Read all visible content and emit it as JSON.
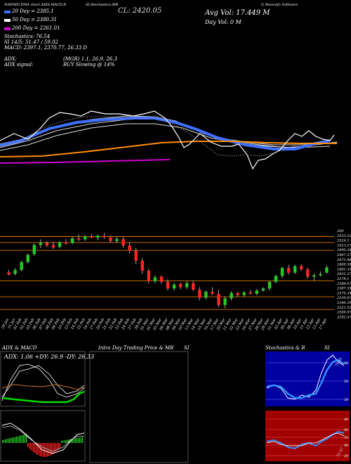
{
  "header": {
    "line1_left": "NSEIND EMA chart AXIS,MACD,R",
    "line1_mid": "SI,Stochastics,MR",
    "close_label": "CL: 2420.05",
    "line1_right": "I) Muncafo Software",
    "vol_label": "Avg Vol: 17.449 M",
    "day_vol_label": "Day Vol: 0   M",
    "ema20": "20  Day = 2385.1",
    "ema50": "50  Day = 2380.31",
    "ema200": "200  Day = 2261.01",
    "stochastics": "Stochastics: 76.54",
    "rsi": "SI 14/5: 51.47 / 59.02",
    "macd": "MACD: 2397.1, 2370.77, 26.33 D",
    "adx": "ADX:",
    "adx_values": "(MGR) 1.1, 26.9, 26.3",
    "adx_signal_label": "ADX  signal:",
    "adx_signal": "BUY Slowing @ 14%"
  },
  "colors": {
    "ema20": "#ffffff",
    "ema50": "#3f6fff",
    "ema100": "#d8d8d8",
    "ema200": "#ff8c00",
    "ema_magenta": "#d000d0",
    "up": "#22cc22",
    "down": "#ff2222",
    "orange_line": "#ff8c00",
    "blue_panel": "#0000a0",
    "red_panel": "#a00000",
    "green_line": "#00dd00"
  },
  "price_scale": [
    "200",
    "2533.33",
    "2524.3",
    "2513.27",
    "2495.24",
    "2487.27",
    "2471.46",
    "2469.38",
    "2461.33",
    "2431.27",
    "2379.1",
    "2399.67",
    "2387.39",
    "2375.34",
    "2330.87",
    "2346.29",
    "2321.53",
    "2306.97",
    "2292.57"
  ],
  "dates": [
    "29 Jan",
    "31 Jan",
    "01 Feb",
    "02 Feb",
    "03 Feb",
    "06 Feb",
    "07 Feb",
    "08 Feb",
    "09 Feb",
    "10 Feb",
    "13 Feb",
    "14 Feb",
    "15 Feb",
    "16 Feb",
    "17 Feb",
    "20 Feb",
    "21 Feb",
    "22 Feb",
    "23 Feb",
    "24 Feb",
    "27 Feb",
    "28 Feb",
    "01 Mar",
    "02 Mar",
    "03 Mar",
    "06 Mar",
    "08 Mar",
    "09 Mar",
    "10 Mar",
    "13 Mar",
    "14 Mar",
    "15 Mar",
    "16 Mar",
    "17 Mar",
    "20 Mar",
    "21 Mar",
    "22 Mar",
    "23 Mar",
    "24 Mar",
    "27 Mar",
    "28 Mar",
    "29 Mar",
    "31 Mar",
    "03 Apr",
    "05 Apr",
    "06 Apr",
    "10 Apr",
    "11 Apr",
    "12 Apr",
    "13 Apr",
    "17 Apr"
  ],
  "panels": {
    "adx_title": "ADX  & MACD",
    "adx_inner": "ADX: 1.06  +DY: 26.9 -DY: 26.33",
    "mr_title": "Intra  Day Trading Price  & MR",
    "mr_si": "SI",
    "stoch_title": "Stochastics & R",
    "stoch_si": "SI",
    "stoch_value": "76.54",
    "stoch_ticks": [
      "80",
      "50",
      "20"
    ],
    "rsi_value": "51.47",
    "rsi_ticks": [
      "80",
      "60",
      "50",
      "40",
      "20"
    ]
  },
  "chart_data": {
    "type": "candlestick",
    "categories": [
      "29 Jan",
      "31 Jan",
      "01 Feb",
      "02 Feb",
      "03 Feb",
      "06 Feb",
      "07 Feb",
      "08 Feb",
      "09 Feb",
      "10 Feb",
      "13 Feb",
      "14 Feb",
      "15 Feb",
      "16 Feb",
      "17 Feb",
      "20 Feb",
      "21 Feb",
      "22 Feb",
      "23 Feb",
      "24 Feb",
      "27 Feb",
      "28 Feb",
      "01 Mar",
      "02 Mar",
      "03 Mar",
      "06 Mar",
      "08 Mar",
      "09 Mar",
      "10 Mar",
      "13 Mar",
      "14 Mar",
      "15 Mar",
      "16 Mar",
      "17 Mar",
      "20 Mar",
      "21 Mar",
      "22 Mar",
      "23 Mar",
      "24 Mar",
      "27 Mar",
      "28 Mar",
      "29 Mar",
      "31 Mar",
      "03 Apr",
      "05 Apr",
      "06 Apr",
      "10 Apr",
      "11 Apr",
      "12 Apr",
      "13 Apr",
      "17 Apr"
    ],
    "candles": [
      {
        "o": 2405,
        "h": 2412,
        "l": 2395,
        "c": 2398
      },
      {
        "o": 2400,
        "h": 2418,
        "l": 2396,
        "c": 2412
      },
      {
        "o": 2412,
        "h": 2440,
        "l": 2408,
        "c": 2436
      },
      {
        "o": 2436,
        "h": 2462,
        "l": 2432,
        "c": 2458
      },
      {
        "o": 2460,
        "h": 2492,
        "l": 2455,
        "c": 2488
      },
      {
        "o": 2488,
        "h": 2505,
        "l": 2478,
        "c": 2495
      },
      {
        "o": 2494,
        "h": 2500,
        "l": 2482,
        "c": 2486
      },
      {
        "o": 2488,
        "h": 2498,
        "l": 2476,
        "c": 2480
      },
      {
        "o": 2482,
        "h": 2500,
        "l": 2478,
        "c": 2496
      },
      {
        "o": 2496,
        "h": 2506,
        "l": 2488,
        "c": 2492
      },
      {
        "o": 2494,
        "h": 2512,
        "l": 2490,
        "c": 2508
      },
      {
        "o": 2508,
        "h": 2520,
        "l": 2500,
        "c": 2504
      },
      {
        "o": 2505,
        "h": 2518,
        "l": 2500,
        "c": 2514
      },
      {
        "o": 2514,
        "h": 2522,
        "l": 2508,
        "c": 2510
      },
      {
        "o": 2510,
        "h": 2520,
        "l": 2502,
        "c": 2516
      },
      {
        "o": 2516,
        "h": 2524,
        "l": 2506,
        "c": 2512
      },
      {
        "o": 2510,
        "h": 2516,
        "l": 2495,
        "c": 2500
      },
      {
        "o": 2500,
        "h": 2512,
        "l": 2494,
        "c": 2506
      },
      {
        "o": 2506,
        "h": 2512,
        "l": 2480,
        "c": 2486
      },
      {
        "o": 2486,
        "h": 2496,
        "l": 2462,
        "c": 2470
      },
      {
        "o": 2470,
        "h": 2480,
        "l": 2430,
        "c": 2440
      },
      {
        "o": 2440,
        "h": 2448,
        "l": 2400,
        "c": 2410
      },
      {
        "o": 2410,
        "h": 2416,
        "l": 2370,
        "c": 2378
      },
      {
        "o": 2378,
        "h": 2396,
        "l": 2372,
        "c": 2390
      },
      {
        "o": 2392,
        "h": 2395,
        "l": 2370,
        "c": 2376
      },
      {
        "o": 2376,
        "h": 2384,
        "l": 2350,
        "c": 2356
      },
      {
        "o": 2356,
        "h": 2372,
        "l": 2350,
        "c": 2368
      },
      {
        "o": 2370,
        "h": 2374,
        "l": 2354,
        "c": 2360
      },
      {
        "o": 2360,
        "h": 2378,
        "l": 2354,
        "c": 2372
      },
      {
        "o": 2372,
        "h": 2380,
        "l": 2348,
        "c": 2352
      },
      {
        "o": 2352,
        "h": 2360,
        "l": 2320,
        "c": 2328
      },
      {
        "o": 2328,
        "h": 2350,
        "l": 2322,
        "c": 2346
      },
      {
        "o": 2346,
        "h": 2360,
        "l": 2336,
        "c": 2340
      },
      {
        "o": 2340,
        "h": 2352,
        "l": 2300,
        "c": 2306
      },
      {
        "o": 2306,
        "h": 2332,
        "l": 2296,
        "c": 2326
      },
      {
        "o": 2326,
        "h": 2348,
        "l": 2320,
        "c": 2342
      },
      {
        "o": 2342,
        "h": 2346,
        "l": 2330,
        "c": 2336
      },
      {
        "o": 2336,
        "h": 2348,
        "l": 2330,
        "c": 2344
      },
      {
        "o": 2344,
        "h": 2352,
        "l": 2338,
        "c": 2340
      },
      {
        "o": 2340,
        "h": 2354,
        "l": 2336,
        "c": 2350
      },
      {
        "o": 2350,
        "h": 2360,
        "l": 2346,
        "c": 2356
      },
      {
        "o": 2356,
        "h": 2380,
        "l": 2350,
        "c": 2376
      },
      {
        "o": 2376,
        "h": 2398,
        "l": 2372,
        "c": 2394
      },
      {
        "o": 2394,
        "h": 2422,
        "l": 2388,
        "c": 2418
      },
      {
        "o": 2418,
        "h": 2428,
        "l": 2398,
        "c": 2404
      },
      {
        "o": 2404,
        "h": 2428,
        "l": 2400,
        "c": 2424
      },
      {
        "o": 2424,
        "h": 2430,
        "l": 2410,
        "c": 2414
      },
      {
        "o": 2414,
        "h": 2418,
        "l": 2386,
        "c": 2392
      },
      {
        "o": 2392,
        "h": 2402,
        "l": 2380,
        "c": 2396
      },
      {
        "o": 2396,
        "h": 2408,
        "l": 2392,
        "c": 2400
      },
      {
        "o": 2404,
        "h": 2426,
        "l": 2402,
        "c": 2420
      }
    ],
    "ylim": [
      2280,
      2540
    ],
    "support_levels": [
      2513.27,
      2495.24,
      2471.46,
      2379.1,
      2330.87,
      2292.57
    ]
  }
}
